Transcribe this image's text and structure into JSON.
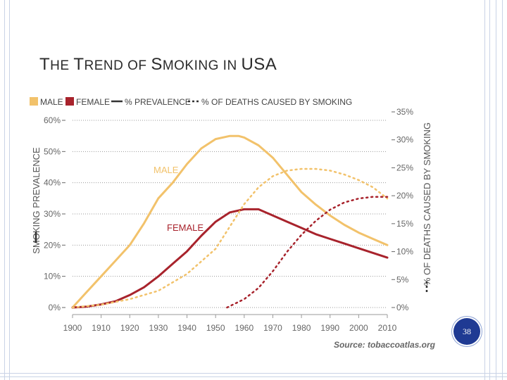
{
  "slide": {
    "title_parts": [
      "T",
      "HE ",
      "T",
      "REND OF ",
      "S",
      "MOKING IN ",
      "USA"
    ],
    "page_number": "38"
  },
  "chart_data": {
    "type": "line",
    "source": "Source: tobaccoatlas.org",
    "x_ticks": [
      "1900",
      "1910",
      "1920",
      "1930",
      "1940",
      "1950",
      "1960",
      "1970",
      "1980",
      "1990",
      "2000",
      "2010"
    ],
    "xlim": [
      1900,
      2010
    ],
    "left_axis": {
      "label": "SMOKING PREVALENCE",
      "ticks": [
        "0%",
        "10%",
        "20%",
        "30%",
        "40%",
        "50%",
        "60%"
      ],
      "ylim": [
        0,
        60
      ]
    },
    "right_axis": {
      "label": "% OF DEATHS CAUSED BY SMOKING",
      "ticks": [
        "0%",
        "5%",
        "10%",
        "15%",
        "20%",
        "25%",
        "30%",
        "35%"
      ],
      "ylim": [
        0,
        35
      ]
    },
    "legend": {
      "male": "MALE",
      "female": "FEMALE",
      "prevalence": "% PREVALENCE",
      "deaths": "% OF DEATHS CAUSED BY SMOKING"
    },
    "colors": {
      "male": "#f2c26b",
      "female": "#a8232c",
      "text": "#666666",
      "grid": "#9a9a9a"
    },
    "series": [
      {
        "name": "MALE",
        "label": "MALE",
        "metric": "prevalence",
        "axis": "left",
        "x": [
          1900,
          1905,
          1910,
          1915,
          1920,
          1925,
          1930,
          1935,
          1940,
          1945,
          1950,
          1955,
          1958,
          1960,
          1965,
          1970,
          1975,
          1980,
          1985,
          1990,
          1995,
          2000,
          2005,
          2010
        ],
        "values": [
          0,
          5,
          10,
          15,
          20,
          27,
          35,
          40,
          46,
          51,
          54,
          55,
          55,
          54.5,
          52,
          48,
          42.5,
          37,
          33,
          29.5,
          26.5,
          24,
          22,
          20
        ]
      },
      {
        "name": "FEMALE",
        "label": "FEMALE",
        "metric": "prevalence",
        "axis": "left",
        "x": [
          1900,
          1905,
          1910,
          1915,
          1920,
          1925,
          1930,
          1935,
          1940,
          1945,
          1950,
          1955,
          1960,
          1965,
          1970,
          1975,
          1980,
          1985,
          1990,
          1995,
          2000,
          2005,
          2010
        ],
        "values": [
          0,
          0.3,
          1,
          2,
          4,
          6.5,
          10,
          14,
          18,
          23,
          27.5,
          30.5,
          31.5,
          31.5,
          29.5,
          27.5,
          25.5,
          23.5,
          22,
          20.5,
          19,
          17.5,
          16
        ]
      },
      {
        "name": "MALE",
        "metric": "deaths",
        "axis": "right",
        "x": [
          1900,
          1910,
          1920,
          1930,
          1940,
          1950,
          1955,
          1960,
          1965,
          1970,
          1975,
          1980,
          1985,
          1990,
          1995,
          2000,
          2005,
          2010
        ],
        "values": [
          0,
          0.5,
          1.5,
          3,
          6,
          10.5,
          14.5,
          18.5,
          21.5,
          23.5,
          24.5,
          24.8,
          24.8,
          24.5,
          23.8,
          22.8,
          21.5,
          19.5
        ]
      },
      {
        "name": "FEMALE",
        "metric": "deaths",
        "axis": "right",
        "x": [
          1954,
          1960,
          1965,
          1970,
          1975,
          1980,
          1985,
          1990,
          1995,
          2000,
          2005,
          2010
        ],
        "values": [
          0,
          1.5,
          3.5,
          6.5,
          10,
          13,
          15.5,
          17.5,
          18.8,
          19.5,
          19.8,
          19.8
        ]
      }
    ]
  }
}
